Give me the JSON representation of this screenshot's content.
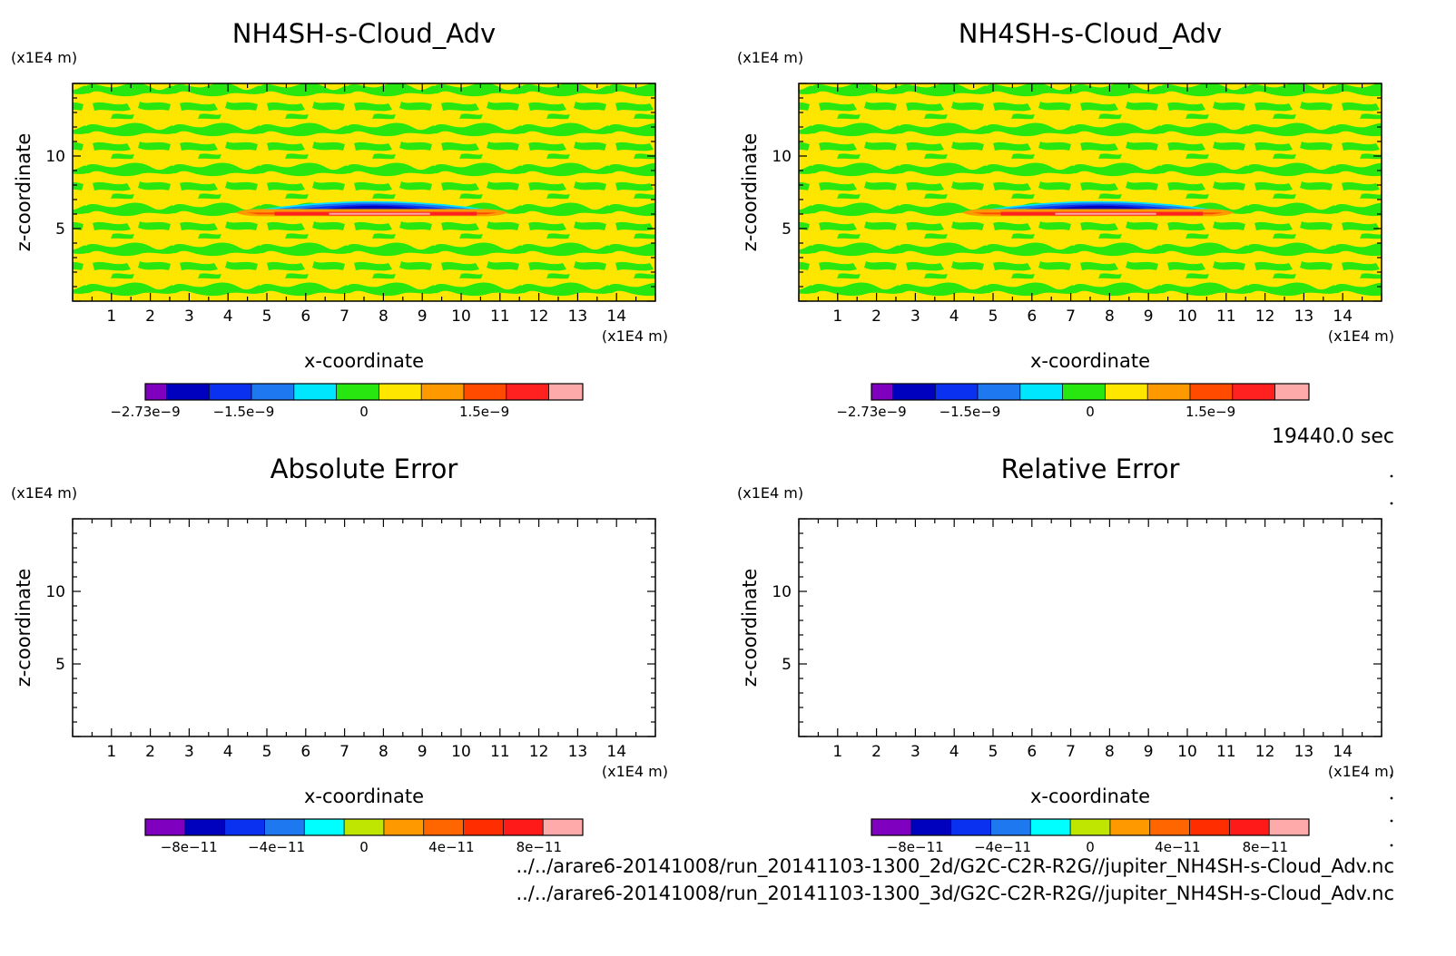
{
  "time_label": "19440.0 sec",
  "file_paths": [
    "../../arare6-20141008/run_20141103-1300_2d/G2C-C2R-R2G//jupiter_NH4SH-s-Cloud_Adv.nc",
    "../../arare6-20141008/run_20141103-1300_3d/G2C-C2R-R2G//jupiter_NH4SH-s-Cloud_Adv.nc"
  ],
  "panels": [
    {
      "id": "top-left",
      "title": "NH4SH-s-Cloud_Adv",
      "xlabel": "x-coordinate",
      "ylabel": "z-coordinate",
      "xunit": "(x1E4 m)",
      "yunit": "(x1E4 m)",
      "xticks": [
        "1",
        "2",
        "3",
        "4",
        "5",
        "6",
        "7",
        "8",
        "9",
        "10",
        "11",
        "12",
        "13",
        "14"
      ],
      "yticks": [
        "5",
        "10"
      ],
      "filled": true,
      "colorbar": {
        "colors": [
          "#7f00bf",
          "#0000bf",
          "#0a30f0",
          "#1e78f0",
          "#00e6ff",
          "#28e60f",
          "#ffe600",
          "#ff9900",
          "#ff4b00",
          "#ff2020",
          "#ffaaaa"
        ],
        "widths": [
          1,
          2,
          2,
          2,
          2,
          2,
          2,
          2,
          2,
          2,
          1.6
        ],
        "labels": [
          {
            "text": "−2.73e−9",
            "pos": 0.0
          },
          {
            "text": "−1.5e−9",
            "pos": 0.225
          },
          {
            "text": "0",
            "pos": 0.5
          },
          {
            "text": "1.5e−9",
            "pos": 0.775
          }
        ]
      }
    },
    {
      "id": "top-right",
      "title": "NH4SH-s-Cloud_Adv",
      "xlabel": "x-coordinate",
      "ylabel": "z-coordinate",
      "xunit": "(x1E4 m)",
      "yunit": "(x1E4 m)",
      "xticks": [
        "1",
        "2",
        "3",
        "4",
        "5",
        "6",
        "7",
        "8",
        "9",
        "10",
        "11",
        "12",
        "13",
        "14"
      ],
      "yticks": [
        "5",
        "10"
      ],
      "filled": true,
      "colorbar": {
        "colors": [
          "#7f00bf",
          "#0000bf",
          "#0a30f0",
          "#1e78f0",
          "#00e6ff",
          "#28e60f",
          "#ffe600",
          "#ff9900",
          "#ff4b00",
          "#ff2020",
          "#ffaaaa"
        ],
        "widths": [
          1,
          2,
          2,
          2,
          2,
          2,
          2,
          2,
          2,
          2,
          1.6
        ],
        "labels": [
          {
            "text": "−2.73e−9",
            "pos": 0.0
          },
          {
            "text": "−1.5e−9",
            "pos": 0.225
          },
          {
            "text": "0",
            "pos": 0.5
          },
          {
            "text": "1.5e−9",
            "pos": 0.775
          }
        ]
      }
    },
    {
      "id": "bottom-left",
      "title": "Absolute Error",
      "xlabel": "x-coordinate",
      "ylabel": "z-coordinate",
      "xunit": "(x1E4 m)",
      "yunit": "(x1E4 m)",
      "xticks": [
        "1",
        "2",
        "3",
        "4",
        "5",
        "6",
        "7",
        "8",
        "9",
        "10",
        "11",
        "12",
        "13",
        "14"
      ],
      "yticks": [
        "5",
        "10"
      ],
      "filled": false,
      "colorbar": {
        "colors": [
          "#7f00bf",
          "#0000bf",
          "#0a30f0",
          "#1e78f0",
          "#00ffff",
          "#bfe600",
          "#ff9900",
          "#ff6600",
          "#ff2d00",
          "#ff1a1a",
          "#ffaaaa"
        ],
        "widths": [
          1,
          1,
          1,
          1,
          1,
          1,
          1,
          1,
          1,
          1,
          1
        ],
        "labels": [
          {
            "text": "−8e−11",
            "pos": 0.1
          },
          {
            "text": "−4e−11",
            "pos": 0.3
          },
          {
            "text": "0",
            "pos": 0.5
          },
          {
            "text": "4e−11",
            "pos": 0.7
          },
          {
            "text": "8e−11",
            "pos": 0.9
          }
        ]
      }
    },
    {
      "id": "bottom-right",
      "title": "Relative Error",
      "xlabel": "x-coordinate",
      "ylabel": "z-coordinate",
      "xunit": "(x1E4 m)",
      "yunit": "(x1E4 m)",
      "xticks": [
        "1",
        "2",
        "3",
        "4",
        "5",
        "6",
        "7",
        "8",
        "9",
        "10",
        "11",
        "12",
        "13",
        "14"
      ],
      "yticks": [
        "5",
        "10"
      ],
      "filled": false,
      "colorbar": {
        "colors": [
          "#7f00bf",
          "#0000bf",
          "#0a30f0",
          "#1e78f0",
          "#00ffff",
          "#bfe600",
          "#ff9900",
          "#ff6600",
          "#ff2d00",
          "#ff1a1a",
          "#ffaaaa"
        ],
        "widths": [
          1,
          1,
          1,
          1,
          1,
          1,
          1,
          1,
          1,
          1,
          1
        ],
        "labels": [
          {
            "text": "−8e−11",
            "pos": 0.1
          },
          {
            "text": "−4e−11",
            "pos": 0.3
          },
          {
            "text": "0",
            "pos": 0.5
          },
          {
            "text": "4e−11",
            "pos": 0.7
          },
          {
            "text": "8e−11",
            "pos": 0.9
          }
        ]
      }
    }
  ],
  "chart_data": [
    {
      "type": "heatmap",
      "title": "NH4SH-s-Cloud_Adv",
      "xlabel": "x-coordinate",
      "ylabel": "z-coordinate",
      "xunit": "(x1E4 m)",
      "yunit": "(x1E4 m)",
      "xlim": [
        0,
        15
      ],
      "ylim": [
        0,
        15
      ],
      "colorbar_range": [
        -2.73e-09,
        2.73e-09
      ],
      "colorbar_ticks": [
        "-2.73e-9",
        "-1.5e-9",
        "0",
        "1.5e-9"
      ],
      "features": {
        "background_value": "near 0 (alternating yellow/green bands)",
        "negative_layer": {
          "x_range": [
            5,
            10.5
          ],
          "z_range": [
            6.4,
            7.0
          ],
          "min": -2.73e-09
        },
        "positive_layer": {
          "x_range": [
            4.2,
            11.2
          ],
          "z_range": [
            5.9,
            6.3
          ],
          "max": 2.73e-09
        }
      }
    },
    {
      "type": "heatmap",
      "title": "NH4SH-s-Cloud_Adv",
      "xlabel": "x-coordinate",
      "ylabel": "z-coordinate",
      "xunit": "(x1E4 m)",
      "yunit": "(x1E4 m)",
      "xlim": [
        0,
        15
      ],
      "ylim": [
        0,
        15
      ],
      "colorbar_range": [
        -2.73e-09,
        2.73e-09
      ],
      "colorbar_ticks": [
        "-2.73e-9",
        "-1.5e-9",
        "0",
        "1.5e-9"
      ],
      "features": {
        "background_value": "near 0 (alternating yellow/green bands)",
        "negative_layer": {
          "x_range": [
            5,
            10.5
          ],
          "z_range": [
            6.4,
            7.0
          ],
          "min": -2.73e-09
        },
        "positive_layer": {
          "x_range": [
            4.2,
            11.2
          ],
          "z_range": [
            5.9,
            6.3
          ],
          "max": 2.73e-09
        }
      }
    },
    {
      "type": "heatmap",
      "title": "Absolute Error",
      "xlabel": "x-coordinate",
      "ylabel": "z-coordinate",
      "xunit": "(x1E4 m)",
      "yunit": "(x1E4 m)",
      "xlim": [
        0,
        15
      ],
      "ylim": [
        0,
        15
      ],
      "colorbar_ticks": [
        "-8e-11",
        "-4e-11",
        "0",
        "4e-11",
        "8e-11"
      ],
      "values": "empty"
    },
    {
      "type": "heatmap",
      "title": "Relative Error",
      "xlabel": "x-coordinate",
      "ylabel": "z-coordinate",
      "xunit": "(x1E4 m)",
      "yunit": "(x1E4 m)",
      "xlim": [
        0,
        15
      ],
      "ylim": [
        0,
        15
      ],
      "colorbar_ticks": [
        "-8e-11",
        "-4e-11",
        "0",
        "4e-11",
        "8e-11"
      ],
      "values": "empty"
    }
  ]
}
